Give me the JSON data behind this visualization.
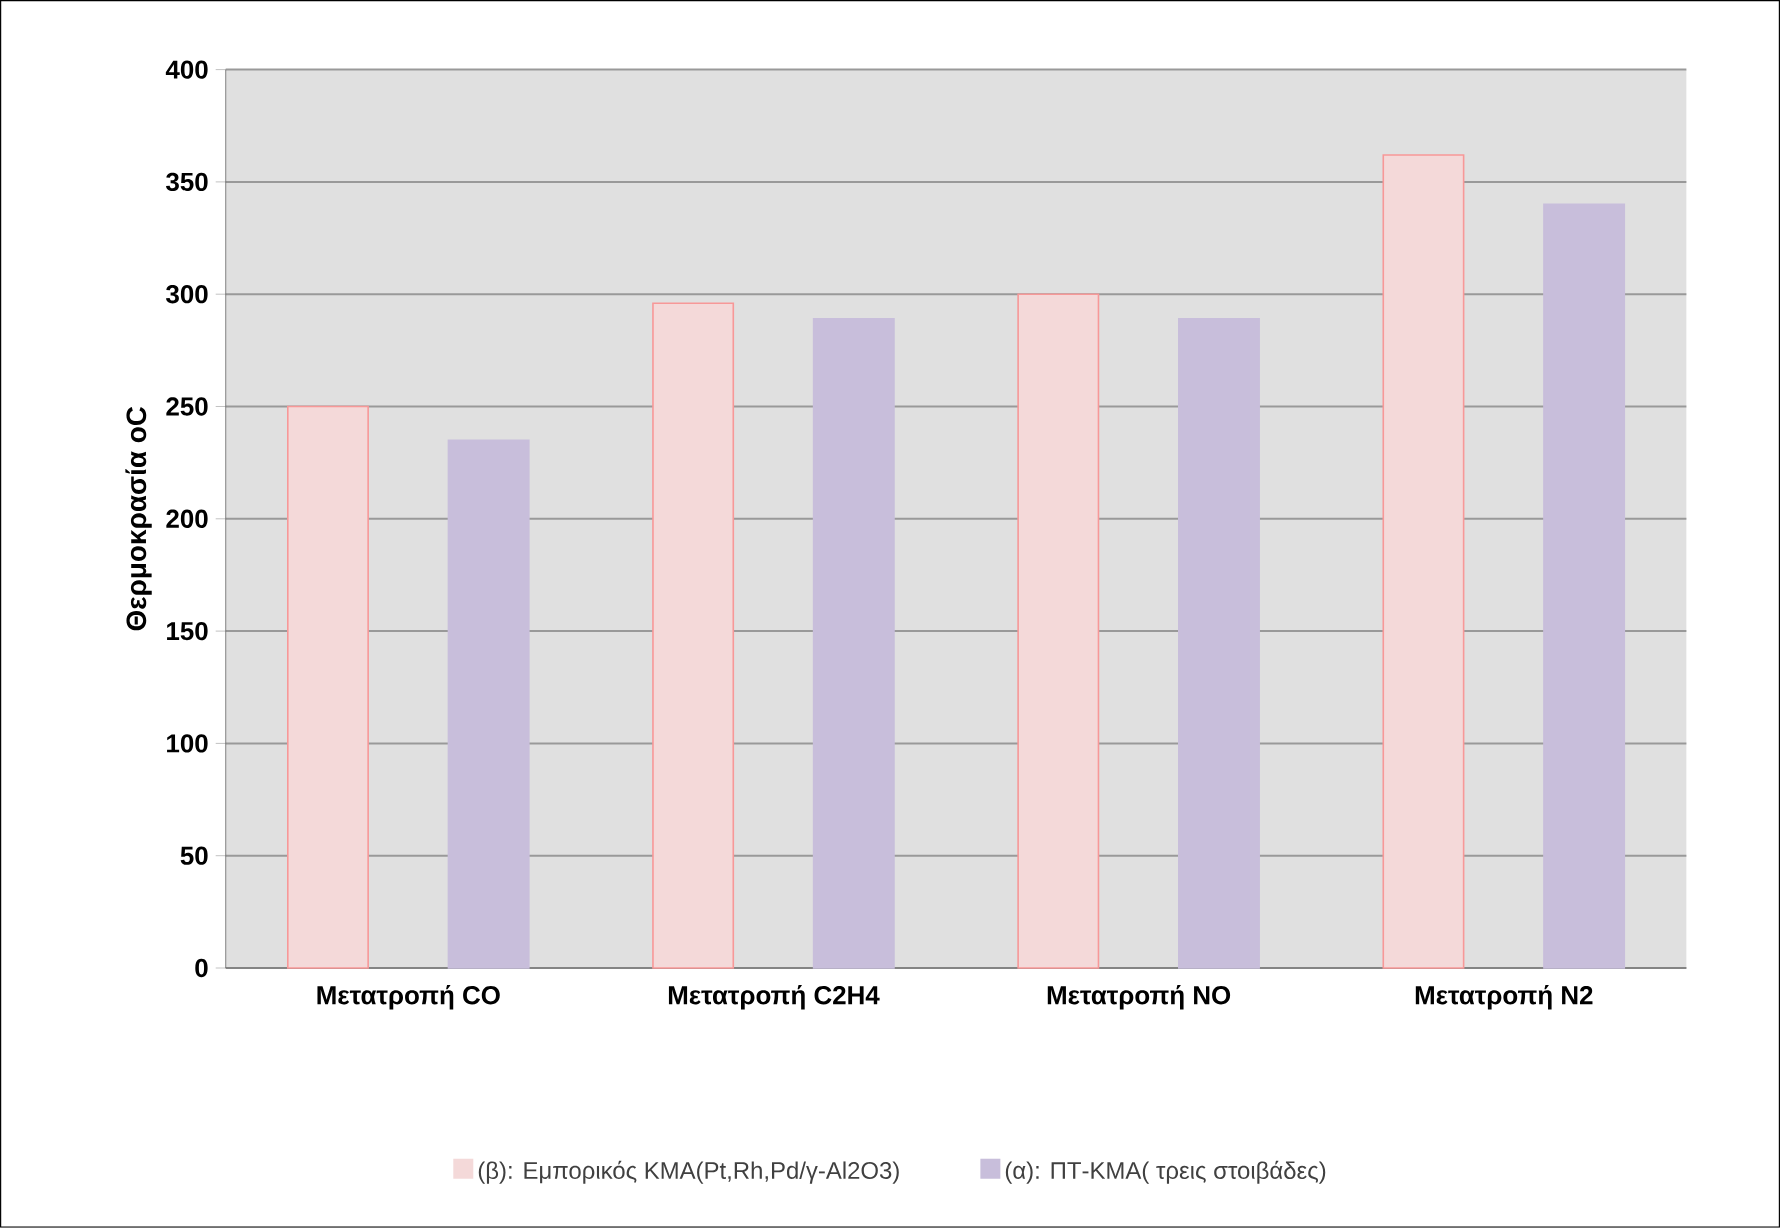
{
  "chart_data": {
    "type": "bar",
    "ylabel": "Θερμοκρασία oC",
    "categories": [
      "Μετατροπή CO",
      "Μετατροπή C2H4",
      "Μετατροπή NO",
      "Μετατροπή N2"
    ],
    "series": [
      {
        "name": "(β): Εμπορικός ΚΜΑ(Pt,Rh,Pd/γ-Al2O3)",
        "color": "#f4d9d9",
        "values": [
          250,
          296,
          300,
          362
        ]
      },
      {
        "name": "(α): ΠΤ-ΚΜΑ( τρεις στοιβάδες)",
        "color": "#c8bedb",
        "values": [
          235,
          289,
          289,
          340
        ]
      }
    ],
    "ylim": [
      0,
      400
    ],
    "yticks": [
      0,
      50,
      100,
      150,
      200,
      250,
      300,
      350,
      400
    ],
    "grid": "y",
    "legend": "bottom"
  }
}
